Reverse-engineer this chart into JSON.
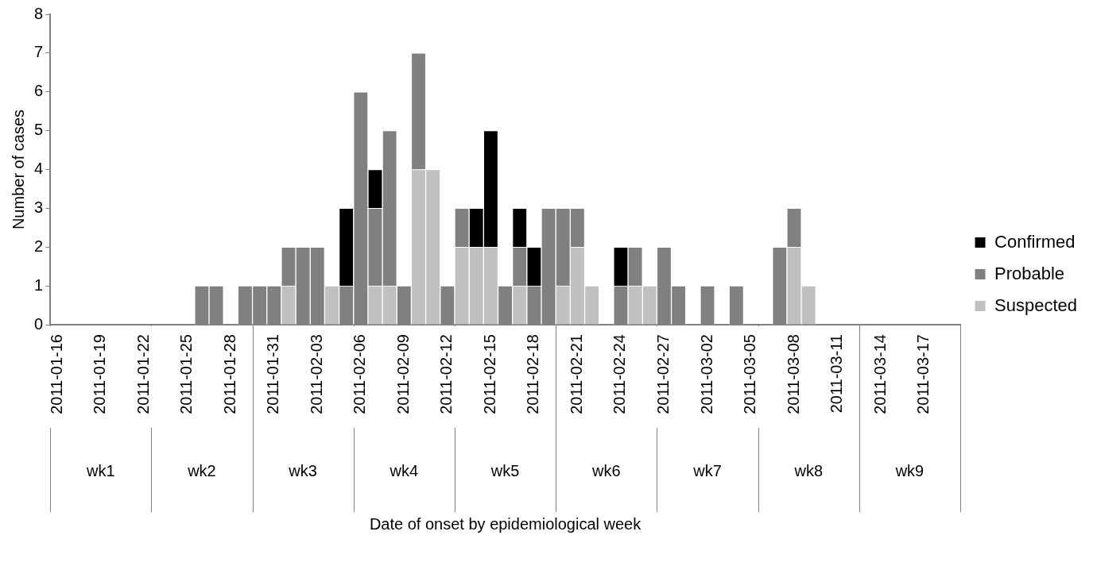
{
  "chart_data": {
    "type": "bar",
    "stacked": true,
    "ylabel": "Number of cases",
    "categories": [
      "2011-01-16",
      null,
      null,
      "2011-01-19",
      null,
      null,
      "2011-01-22",
      null,
      null,
      "2011-01-25",
      null,
      null,
      "2011-01-28",
      null,
      null,
      "2011-01-31",
      null,
      null,
      "2011-02-03",
      null,
      null,
      "2011-02-06",
      null,
      null,
      "2011-02-09",
      null,
      null,
      "2011-02-12",
      null,
      null,
      "2011-02-15",
      null,
      null,
      "2011-02-18",
      null,
      null,
      "2011-02-21",
      null,
      null,
      "2011-02-24",
      null,
      null,
      "2011-02-27",
      null,
      null,
      "2011-03-02",
      null,
      null,
      "2011-03-05",
      null,
      null,
      "2011-03-08",
      null,
      null,
      "2011-03-11",
      null,
      null,
      "2011-03-14",
      null,
      null,
      "2011-03-17",
      null,
      null
    ],
    "series": [
      {
        "name": "Suspected",
        "color": "#c0c0c0",
        "values": [
          0,
          0,
          0,
          0,
          0,
          0,
          0,
          0,
          0,
          0,
          0,
          0,
          0,
          0,
          0,
          0,
          1,
          0,
          0,
          1,
          0,
          0,
          1,
          1,
          0,
          4,
          4,
          0,
          2,
          2,
          2,
          0,
          1,
          0,
          0,
          1,
          2,
          1,
          0,
          0,
          1,
          1,
          0,
          0,
          0,
          0,
          0,
          0,
          0,
          0,
          0,
          2,
          1,
          0,
          0,
          0,
          0,
          0,
          0,
          0,
          0,
          0,
          0
        ]
      },
      {
        "name": "Probable",
        "color": "#808080",
        "values": [
          0,
          0,
          0,
          0,
          0,
          0,
          0,
          0,
          0,
          0,
          1,
          1,
          0,
          1,
          1,
          1,
          1,
          2,
          2,
          0,
          1,
          6,
          2,
          4,
          1,
          3,
          0,
          1,
          1,
          0,
          0,
          1,
          1,
          1,
          3,
          2,
          1,
          0,
          0,
          1,
          1,
          0,
          2,
          1,
          0,
          1,
          0,
          1,
          0,
          0,
          2,
          1,
          0,
          0,
          0,
          0,
          0,
          0,
          0,
          0,
          0,
          0,
          0
        ]
      },
      {
        "name": "Confirmed",
        "color": "#000000",
        "values": [
          0,
          0,
          0,
          0,
          0,
          0,
          0,
          0,
          0,
          0,
          0,
          0,
          0,
          0,
          0,
          0,
          0,
          0,
          0,
          0,
          2,
          0,
          1,
          0,
          0,
          0,
          0,
          0,
          0,
          1,
          3,
          0,
          1,
          1,
          0,
          0,
          0,
          0,
          0,
          1,
          0,
          0,
          0,
          0,
          0,
          0,
          0,
          0,
          0,
          0,
          0,
          0,
          0,
          0,
          0,
          0,
          0,
          0,
          0,
          0,
          0,
          0,
          0
        ]
      }
    ],
    "ylim": [
      0,
      8
    ],
    "yticks": [
      0,
      1,
      2,
      3,
      4,
      5,
      6,
      7,
      8
    ],
    "grid": false,
    "legend": "right",
    "annotations": [
      "Date of onset by epidemiological week",
      "wk1",
      "wk2",
      "wk3",
      "wk4",
      "wk5",
      "wk6",
      "wk7",
      "wk8",
      "wk9"
    ]
  }
}
